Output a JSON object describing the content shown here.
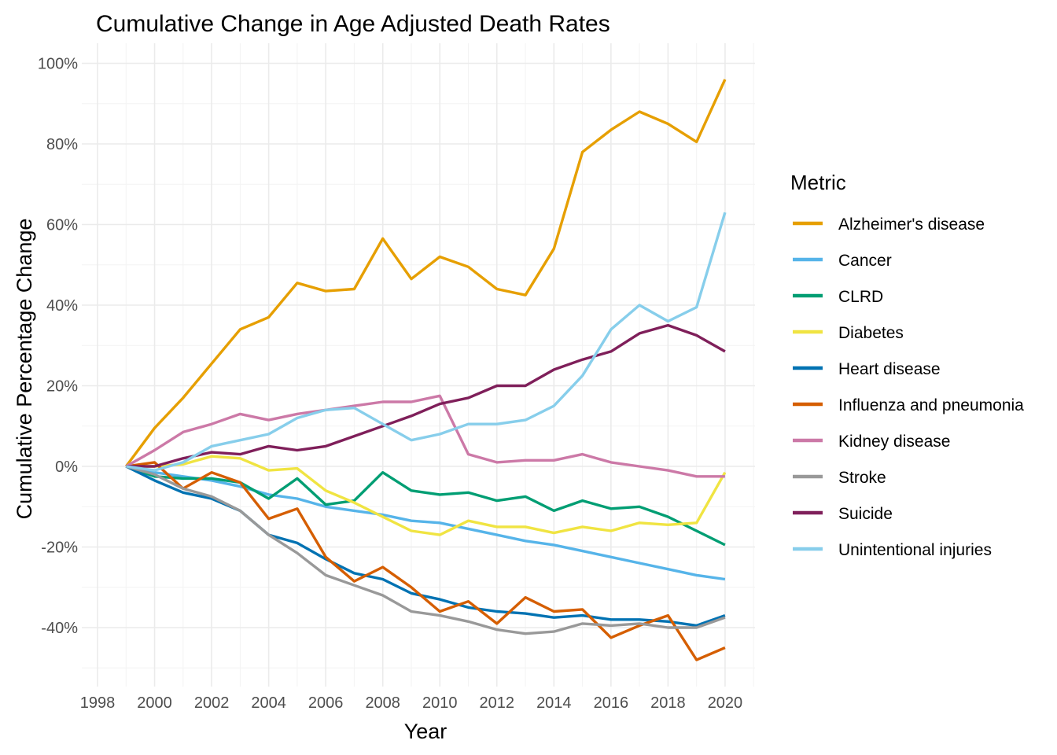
{
  "chart_data": {
    "type": "line",
    "title": "Cumulative Change in Age Adjusted Death Rates",
    "xlabel": "Year",
    "ylabel": "Cumulative Percentage Change",
    "xlim": [
      1998,
      2020
    ],
    "ylim": [
      -50,
      100
    ],
    "x_ticks": [
      "1998",
      "2000",
      "2002",
      "2004",
      "2006",
      "2008",
      "2010",
      "2012",
      "2014",
      "2016",
      "2018",
      "2020"
    ],
    "y_ticks": [
      "100%",
      "80%",
      "60%",
      "40%",
      "20%",
      "0%",
      "-20%",
      "-40%"
    ],
    "grid": true,
    "legend_title": "Metric",
    "legend_position": "right",
    "x": [
      1999,
      2000,
      2001,
      2002,
      2003,
      2004,
      2005,
      2006,
      2007,
      2008,
      2009,
      2010,
      2011,
      2012,
      2013,
      2014,
      2015,
      2016,
      2017,
      2018,
      2019,
      2020
    ],
    "series": [
      {
        "name": "Alzheimer's disease",
        "color": "#E69F00",
        "values": [
          0,
          9.5,
          17,
          25.5,
          34,
          37,
          45.5,
          43.5,
          44,
          56.5,
          46.5,
          52,
          49.5,
          44,
          42.5,
          54,
          78,
          83.5,
          88,
          85,
          80.5,
          96
        ]
      },
      {
        "name": "Cancer",
        "color": "#56B4E9",
        "values": [
          0,
          -1.5,
          -2.5,
          -3.5,
          -5,
          -7,
          -8,
          -10,
          -11,
          -12,
          -13.5,
          -14,
          -15.5,
          -17,
          -18.5,
          -19.5,
          -21,
          -22.5,
          -24,
          -25.5,
          -27,
          -28
        ]
      },
      {
        "name": "CLRD",
        "color": "#009E73",
        "values": [
          0,
          -2.5,
          -3,
          -3,
          -4,
          -8,
          -3,
          -9.5,
          -8.5,
          -1.5,
          -6,
          -7,
          -6.5,
          -8.5,
          -7.5,
          -11,
          -8.5,
          -10.5,
          -10,
          -12.5,
          -16,
          -19.5
        ]
      },
      {
        "name": "Diabetes",
        "color": "#F0E442",
        "values": [
          0,
          0,
          0.5,
          2.5,
          2,
          -1,
          -0.5,
          -6,
          -9,
          -12.5,
          -16,
          -17,
          -13.5,
          -15,
          -15,
          -16.5,
          -15,
          -16,
          -14,
          -14.5,
          -14,
          -1.5
        ]
      },
      {
        "name": "Heart disease",
        "color": "#0072B2",
        "values": [
          0,
          -3.5,
          -6.5,
          -8,
          -11,
          -17,
          -19,
          -23,
          -26.5,
          -28,
          -31.5,
          -33,
          -35,
          -36,
          -36.5,
          -37.5,
          -37,
          -38,
          -38,
          -38.5,
          -39.5,
          -37
        ]
      },
      {
        "name": "Influenza and pneumonia",
        "color": "#D55E00",
        "values": [
          0,
          1,
          -5.5,
          -1.5,
          -4,
          -13,
          -10.5,
          -22.5,
          -28.5,
          -25,
          -30,
          -36,
          -33.5,
          -39,
          -32.5,
          -36,
          -35.5,
          -42.5,
          -39.5,
          -37,
          -48,
          -45
        ]
      },
      {
        "name": "Kidney disease",
        "color": "#CC79A7",
        "values": [
          0,
          4,
          8.5,
          10.5,
          13,
          11.5,
          13,
          14,
          15,
          16,
          16,
          17.5,
          3,
          1,
          1.5,
          1.5,
          3,
          1,
          0,
          -1,
          -2.5,
          -2.5
        ]
      },
      {
        "name": "Stroke",
        "color": "#999999",
        "values": [
          0,
          -2,
          -5.5,
          -7.5,
          -11,
          -17,
          -21.5,
          -27,
          -29.5,
          -32,
          -36,
          -37,
          -38.5,
          -40.5,
          -41.5,
          -41,
          -39,
          -39.5,
          -39,
          -40,
          -40,
          -37.5
        ]
      },
      {
        "name": "Suicide",
        "color": "#7F1F5A",
        "values": [
          0,
          0,
          2,
          3.5,
          3,
          5,
          4,
          5,
          7.5,
          10,
          12.5,
          15.5,
          17,
          20,
          20,
          24,
          26.5,
          28.5,
          33,
          35,
          32.5,
          28.5
        ]
      },
      {
        "name": "Unintentional injuries",
        "color": "#87CEEB",
        "values": [
          0,
          -1,
          1,
          5,
          6.5,
          8,
          12,
          14,
          14.5,
          10.5,
          6.5,
          8,
          10.5,
          10.5,
          11.5,
          15,
          22.5,
          34,
          40,
          36,
          39.5,
          63
        ]
      }
    ]
  }
}
